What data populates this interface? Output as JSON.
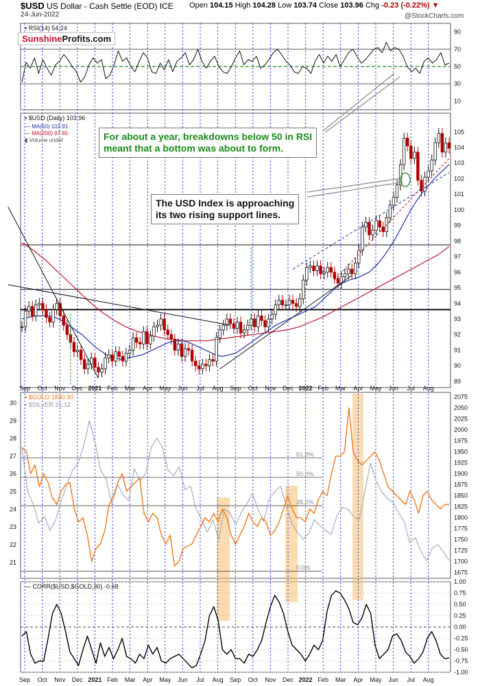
{
  "header": {
    "symbol": "$USD",
    "name": "US Dollar - Cash Settle (EOD)",
    "exchange": "ICE",
    "date": "24-Jun-2022",
    "open_label": "Open",
    "open": "104.15",
    "high_label": "High",
    "high": "104.28",
    "low_label": "Low",
    "low": "103.74",
    "close_label": "Close",
    "close": "103.96",
    "chg_label": "Chg",
    "chg": "-0.23 (-0.22%)",
    "credit": "@StockCharts.com"
  },
  "logo": {
    "part1": "Sunshine",
    "part2": "Profits.com"
  },
  "colors": {
    "usd_up": "#111111",
    "usd_down": "#b00000",
    "ma50": "#1f2fa8",
    "ma200": "#c0102a",
    "gold": "#f07818",
    "silver": "#a0a8b0",
    "corr": "#000000",
    "rsi_mid": "#1a8a1a",
    "highlight": "#f5c070",
    "vgrid": "#1a2aee"
  },
  "annotations": {
    "rsi_note_line1": "For about a year, breakdowns below 50 in RSI",
    "rsi_note_line2": "meant that a bottom was about to form.",
    "usd_note_line1": "The USD Index is approaching",
    "usd_note_line2": "its two rising support lines."
  },
  "chart_data": [
    {
      "type": "line",
      "panel": "rsi",
      "title": "RSI(14) 54.24",
      "ylim": [
        0,
        100
      ],
      "yticks": [
        10,
        30,
        50,
        70,
        90
      ],
      "ref_lines": [
        30,
        50,
        70
      ],
      "series": [
        {
          "name": "RSI(14)",
          "values": [
            32,
            55,
            48,
            60,
            42,
            58,
            48,
            40,
            52,
            56,
            64,
            58,
            50,
            44,
            32,
            38,
            52,
            60,
            54,
            58,
            36,
            40,
            52,
            68,
            56,
            60,
            50,
            44,
            56,
            66,
            60,
            44,
            42,
            54,
            46,
            58,
            44,
            56,
            60,
            66,
            52,
            58,
            70,
            56,
            48,
            56,
            62,
            50,
            44,
            42,
            50,
            60,
            68,
            52,
            58,
            56,
            62,
            48,
            52,
            58,
            66,
            70,
            64,
            56,
            52,
            44,
            42,
            50,
            48,
            42,
            56,
            64,
            54,
            62,
            56,
            64,
            50,
            58,
            66,
            70,
            62,
            54,
            58,
            64,
            70,
            72,
            66,
            78,
            68,
            72,
            70,
            62,
            50,
            44,
            48,
            42,
            56,
            60,
            54,
            58,
            66,
            52,
            54
          ]
        }
      ]
    },
    {
      "type": "candlestick",
      "panel": "usd",
      "title": "$USD (Daily) 103.96",
      "legend": [
        "MA(50) 102.91",
        "MA(200) 97.65",
        "Volume undef"
      ],
      "ylim": [
        88.6,
        106.2
      ],
      "yticks": [
        89,
        90,
        91,
        92,
        93,
        94,
        95,
        96,
        97,
        98,
        99,
        100,
        101,
        102,
        103,
        104,
        105
      ],
      "hlines": [
        93.6,
        94.9,
        97.75
      ],
      "x_labels": [
        "Sep",
        "Oct",
        "Nov",
        "Dec",
        "2021",
        "Feb",
        "Mar",
        "Apr",
        "May",
        "Jun",
        "Jul",
        "Aug",
        "Sep",
        "Oct",
        "Nov",
        "Dec",
        "2022",
        "Feb",
        "Mar",
        "Apr",
        "May",
        "Jun",
        "Jul",
        "Aug"
      ],
      "series": [
        {
          "name": "$USD",
          "values": [
            92.5,
            93.5,
            93.8,
            93.2,
            93.9,
            94.0,
            93.6,
            93.1,
            92.8,
            93.6,
            94.0,
            93.2,
            92.6,
            92.0,
            91.5,
            90.9,
            91.0,
            90.4,
            89.8,
            90.1,
            90.5,
            89.9,
            89.6,
            89.8,
            90.5,
            90.7,
            90.3,
            90.9,
            90.6,
            90.3,
            90.8,
            91.0,
            91.8,
            91.5,
            91.4,
            92.2,
            91.4,
            91.9,
            92.5,
            92.6,
            93.0,
            92.3,
            92.0,
            91.7,
            91.0,
            91.4,
            90.6,
            91.1,
            91.0,
            90.3,
            90.0,
            89.8,
            90.1,
            90.0,
            90.4,
            90.3,
            91.8,
            92.3,
            92.6,
            93.0,
            92.7,
            92.4,
            92.8,
            92.1,
            92.3,
            92.6,
            93.0,
            92.5,
            93.2,
            92.9,
            92.5,
            93.0,
            93.3,
            93.9,
            94.2,
            93.9,
            93.9,
            94.2,
            94.0,
            93.8,
            94.3,
            95.5,
            96.3,
            96.4,
            96.1,
            96.4,
            95.9,
            96.0,
            96.3,
            96.0,
            95.6,
            95.3,
            95.7,
            95.9,
            96.2,
            95.9,
            96.6,
            97.4,
            98.9,
            99.2,
            98.4,
            98.7,
            99.3,
            98.9,
            98.6,
            99.5,
            100.3,
            100.8,
            101.6,
            102.9,
            104.6,
            104.1,
            103.3,
            103.7,
            101.9,
            101.2,
            102.1,
            102.5,
            103.2,
            104.3,
            104.9,
            103.7,
            104.3,
            103.96
          ]
        },
        {
          "name": "MA(50)",
          "values": [
            93.0,
            93.1,
            93.2,
            93.2,
            93.2,
            93.1,
            92.9,
            92.6,
            92.3,
            92.0,
            91.6,
            91.2,
            90.9,
            90.6,
            90.5,
            90.4,
            90.5,
            90.6,
            90.7,
            90.9,
            91.1,
            91.3,
            91.5,
            91.6,
            91.6,
            91.5,
            91.3,
            91.1,
            90.9,
            90.7,
            90.6,
            90.7,
            90.8,
            91.1,
            91.4,
            91.7,
            92.0,
            92.3,
            92.6,
            92.8,
            93.0,
            93.2,
            93.4,
            93.6,
            93.8,
            94.2,
            94.6,
            95.0,
            95.3,
            95.5,
            95.6,
            95.8,
            96.0,
            96.4,
            96.9,
            97.5,
            98.2,
            99.0,
            99.8,
            100.5,
            101.1,
            101.6,
            102.1,
            102.5,
            102.91
          ]
        },
        {
          "name": "MA(200)",
          "values": [
            97.9,
            97.4,
            96.8,
            96.1,
            95.4,
            94.7,
            94.0,
            93.4,
            92.9,
            92.5,
            92.2,
            92.0,
            91.8,
            91.7,
            91.6,
            91.6,
            91.6,
            91.7,
            91.8,
            91.9,
            92.0,
            92.1,
            92.2,
            92.3,
            92.5,
            92.8,
            93.1,
            93.5,
            93.9,
            94.3,
            94.7,
            95.1,
            95.5,
            95.9,
            96.3,
            96.7,
            97.1,
            97.65
          ]
        }
      ]
    },
    {
      "type": "line",
      "panel": "gold_silver",
      "series_labels": [
        "$GOLD 1830.30",
        "$SILVER 21.12"
      ],
      "gold_ylim": [
        1662,
        2085
      ],
      "gold_yticks": [
        1675,
        1700,
        1725,
        1750,
        1775,
        1800,
        1825,
        1850,
        1875,
        1900,
        1925,
        1950,
        1975,
        2000,
        2025,
        2050,
        2075
      ],
      "silver_ylim": [
        20.1,
        30.6
      ],
      "silver_yticks": [
        21,
        22,
        23,
        24,
        25,
        26,
        27,
        28,
        29,
        30
      ],
      "fib_levels": [
        {
          "label": "61.8%",
          "silver": 26.9
        },
        {
          "label": "50.0%",
          "silver": 25.8
        },
        {
          "label": "38.2%",
          "silver": 24.2
        },
        {
          "label": "0.0%",
          "silver": 20.5
        }
      ],
      "x_labels": [
        "Sep",
        "Oct",
        "Nov",
        "Dec",
        "2021",
        "Feb",
        "Mar",
        "Apr",
        "May",
        "Jun",
        "Jul",
        "Aug",
        "Sep",
        "Oct",
        "Nov",
        "Dec",
        "2022",
        "Feb",
        "Mar",
        "Apr",
        "May",
        "Jun",
        "Jul",
        "Aug"
      ],
      "series": [
        {
          "name": "$GOLD",
          "values": [
            1960,
            1950,
            1900,
            1920,
            1870,
            1900,
            1880,
            1845,
            1830,
            1860,
            1875,
            1880,
            1820,
            1790,
            1800,
            1760,
            1700,
            1730,
            1740,
            1770,
            1830,
            1850,
            1880,
            1900,
            1860,
            1870,
            1880,
            1890,
            1810,
            1790,
            1810,
            1800,
            1760,
            1740,
            1760,
            1690,
            1700,
            1730,
            1735,
            1740,
            1760,
            1780,
            1800,
            1790,
            1810,
            1790,
            1820,
            1800,
            1760,
            1740,
            1760,
            1780,
            1810,
            1790,
            1780,
            1800,
            1790,
            1760,
            1770,
            1790,
            1820,
            1850,
            1820,
            1800,
            1800,
            1790,
            1820,
            1810,
            1840,
            1860,
            1850,
            1900,
            1940,
            1940,
            1950,
            2050,
            1950,
            1930,
            1920,
            1930,
            1940,
            1950,
            1930,
            1900,
            1870,
            1860,
            1850,
            1840,
            1830,
            1860,
            1840,
            1810,
            1850,
            1860,
            1840,
            1830,
            1820,
            1830,
            1830.3
          ]
        },
        {
          "name": "$SILVER",
          "values": [
            27.5,
            25.0,
            24.3,
            23.2,
            23.6,
            22.8,
            23.4,
            24.5,
            25.4,
            26.2,
            26.6,
            27.6,
            29.0,
            27.8,
            26.2,
            25.7,
            24.3,
            25.4,
            24.8,
            24.5,
            26.3,
            25.6,
            26.0,
            27.5,
            28.0,
            27.5,
            26.2,
            25.9,
            26.4,
            25.1,
            25.3,
            24.0,
            23.4,
            22.7,
            23.4,
            22.3,
            24.0,
            23.8,
            23.1,
            23.8,
            24.3,
            24.9,
            24.0,
            23.3,
            24.6,
            25.0,
            25.3,
            24.2,
            23.2,
            22.7,
            22.3,
            22.6,
            23.4,
            23.1,
            22.8,
            22.6,
            23.6,
            24.1,
            24.0,
            23.6,
            23.4,
            25.0,
            26.6,
            25.6,
            25.0,
            24.6,
            24.4,
            23.8,
            23.3,
            22.1,
            22.4,
            21.6,
            21.1,
            21.8,
            22.0,
            21.6,
            21.12
          ]
        }
      ]
    },
    {
      "type": "line",
      "panel": "corr",
      "title": "CORR($USD,$GOLD,30) -0.68",
      "ylim": [
        -1.0,
        1.0
      ],
      "yticks": [
        -1.0,
        -0.75,
        -0.5,
        -0.25,
        0.0,
        0.25,
        0.5,
        0.75,
        1.0
      ],
      "yticklabels": [
        "-1.00",
        "-0.75",
        "-0.50",
        "-0.25",
        "0.00",
        "0.25",
        "0.50",
        "0.75",
        "1.00"
      ],
      "x_labels": [
        "Sep",
        "Oct",
        "Nov",
        "Dec",
        "2021",
        "Feb",
        "Mar",
        "Apr",
        "May",
        "Jun",
        "Jul",
        "Aug",
        "Sep",
        "Oct",
        "Nov",
        "Dec",
        "2022",
        "Feb",
        "Mar",
        "Apr",
        "May",
        "Jun",
        "Jul",
        "Aug"
      ],
      "series": [
        {
          "name": "CORR",
          "values": [
            -0.2,
            -0.1,
            -0.6,
            -0.8,
            -0.75,
            -0.75,
            -0.25,
            0.3,
            0.5,
            0.3,
            -0.1,
            -0.55,
            -0.7,
            -0.85,
            -0.5,
            -0.2,
            -0.5,
            -0.8,
            -0.35,
            -0.65,
            -0.45,
            -0.7,
            -0.5,
            -0.25,
            -0.65,
            -0.7,
            -0.8,
            -0.6,
            -0.7,
            -0.4,
            -0.6,
            -0.45,
            -0.75,
            -0.8,
            -0.7,
            -0.65,
            -0.6,
            -0.7,
            -0.8,
            -0.9,
            -0.85,
            -0.6,
            -0.3,
            0.25,
            0.45,
            0.15,
            -0.5,
            -0.6,
            -0.5,
            -0.7,
            -0.7,
            -0.8,
            -0.6,
            -0.65,
            -0.5,
            -0.3,
            0.1,
            0.45,
            0.7,
            0.55,
            0.3,
            -0.1,
            -0.4,
            -0.5,
            -0.6,
            -0.75,
            -0.6,
            -0.4,
            -0.5,
            -0.3,
            0.35,
            0.7,
            0.8,
            0.75,
            0.6,
            0.4,
            0.1,
            0.05,
            0.2,
            0.5,
            0.3,
            -0.4,
            -0.7,
            -0.6,
            -0.5,
            -0.2,
            -0.15,
            -0.3,
            -0.55,
            -0.65,
            -0.8,
            -0.7,
            -0.55,
            -0.25,
            -0.1,
            -0.3,
            -0.6,
            -0.7,
            -0.68
          ]
        }
      ]
    }
  ]
}
